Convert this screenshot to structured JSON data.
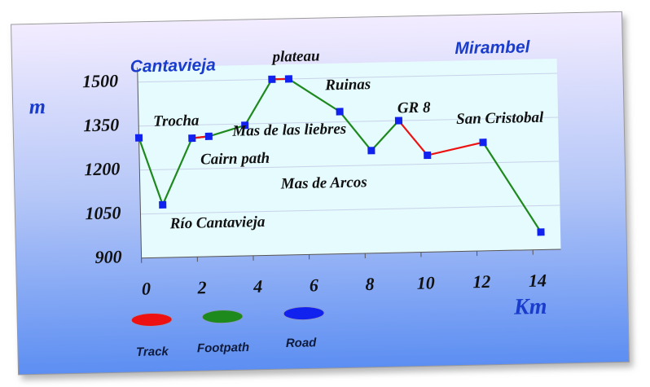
{
  "chart_data": {
    "type": "line",
    "x_label": "Km",
    "y_label": "m",
    "x": [
      0,
      0.8,
      1.9,
      2.5,
      3.8,
      4.8,
      5.4,
      7.2,
      8.3,
      9.3,
      10.3,
      12.3,
      14.3
    ],
    "series": [
      {
        "name": "Footpath",
        "color": "#1e8a1e",
        "values": [
          1310,
          1080,
          1305,
          1310,
          1345,
          1500,
          1500,
          1385,
          1250,
          1350,
          null,
          1270,
          960
        ]
      },
      {
        "name": "Track",
        "color": "#ee1111",
        "values": [
          null,
          null,
          1305,
          1310,
          null,
          1500,
          1500,
          null,
          null,
          1350,
          1230,
          1270,
          null
        ]
      },
      {
        "name": "Road",
        "color": "#1122ee",
        "values": [
          1310,
          1080,
          1305,
          1310,
          1345,
          1500,
          1500,
          1385,
          1250,
          1350,
          1230,
          1270,
          960
        ]
      }
    ],
    "xlim": [
      0,
      15
    ],
    "ylim": [
      900,
      1550
    ],
    "xticks": [
      0,
      2,
      4,
      6,
      8,
      10,
      12,
      14
    ],
    "yticks": [
      900,
      1050,
      1200,
      1350,
      1500
    ],
    "grid": true,
    "annotations": [
      "Cantavieja",
      "plateau",
      "Mirambel",
      "Ruinas",
      "Trocha",
      "Mas de las liebres",
      "GR 8",
      "San Cristobal",
      "Cairn  path",
      "Mas de Arcos",
      "Río Cantavieja"
    ]
  }
}
